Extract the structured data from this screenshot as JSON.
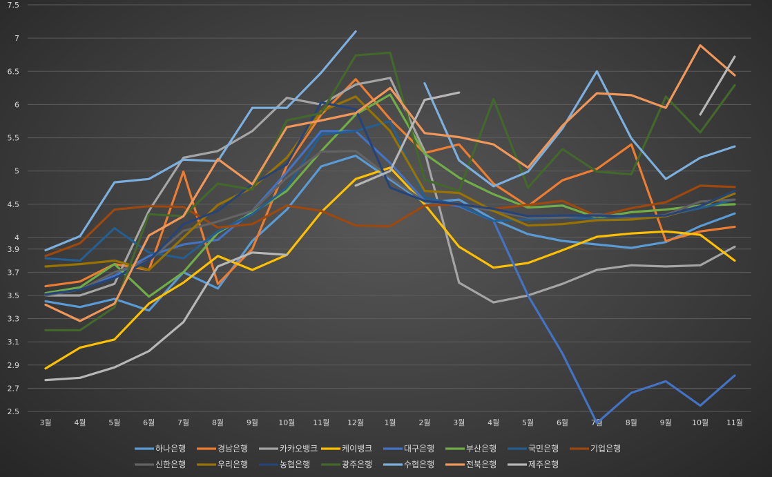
{
  "chart_data": {
    "type": "line",
    "categories": [
      "3월",
      "4월",
      "5월",
      "6월",
      "7월",
      "8월",
      "9월",
      "10월",
      "11월",
      "12월",
      "1월",
      "2월",
      "3월",
      "4월",
      "5월",
      "6월",
      "7월",
      "8월",
      "9월",
      "10월",
      "11월"
    ],
    "y_ticks": [
      "2.5",
      "2.7",
      "2.9",
      "3.1",
      "3.3",
      "3.5",
      "3.7",
      "3.9",
      "4",
      "4.5",
      "5",
      "5.5",
      "6",
      "6.5",
      "7",
      "7.5"
    ],
    "y_scale": "piecewise: 2.5-4 expanded, 4-7.5 compressed",
    "ylim": [
      2.5,
      7.5
    ],
    "grid": true,
    "legend_position": "bottom",
    "series": [
      {
        "name": "하나은행",
        "color": "#5b9bd5",
        "values": [
          3.45,
          3.4,
          3.47,
          3.37,
          3.7,
          3.56,
          3.97,
          4.42,
          5.07,
          5.23,
          4.87,
          4.52,
          4.57,
          4.27,
          4.05,
          3.97,
          3.94,
          3.91,
          3.96,
          4.17,
          4.36
        ]
      },
      {
        "name": "경남은행",
        "color": "#ed7d31",
        "values": [
          3.58,
          3.62,
          3.77,
          3.72,
          4.99,
          3.6,
          3.9,
          5.08,
          5.85,
          6.38,
          5.78,
          5.27,
          5.4,
          4.81,
          4.47,
          4.86,
          5.03,
          5.4,
          3.97,
          4.09,
          4.16
        ]
      },
      {
        "name": "카카오뱅크",
        "color": "#a5a5a5",
        "values": [
          3.5,
          3.5,
          3.6,
          4.4,
          5.2,
          5.3,
          5.6,
          6.1,
          6.0,
          6.3,
          6.4,
          5.3,
          3.61,
          3.44,
          3.5,
          3.6,
          3.72,
          3.76,
          3.75,
          3.76,
          3.92
        ]
      },
      {
        "name": "케이뱅크",
        "color": "#ffc000",
        "values": [
          2.87,
          3.05,
          3.12,
          3.43,
          3.61,
          3.84,
          3.72,
          3.85,
          4.38,
          4.88,
          5.05,
          4.5,
          3.92,
          3.74,
          3.78,
          3.89,
          4.01,
          4.06,
          4.09,
          4.04,
          3.8
        ]
      },
      {
        "name": "대구은행",
        "color": "#4472c4",
        "values": [
          3.51,
          3.55,
          3.67,
          3.84,
          3.94,
          3.98,
          4.4,
          4.98,
          5.6,
          5.6,
          5.12,
          4.55,
          4.47,
          4.25,
          3.5,
          3.0,
          2.4,
          2.66,
          2.76,
          2.55,
          2.81
        ]
      },
      {
        "name": "부산은행",
        "color": "#70ad47",
        "values": [
          3.52,
          3.57,
          3.77,
          3.49,
          3.7,
          4.07,
          4.37,
          4.7,
          5.3,
          5.85,
          6.15,
          5.26,
          4.9,
          4.65,
          4.45,
          4.48,
          4.3,
          4.38,
          4.42,
          4.48,
          4.5
        ]
      },
      {
        "name": "국민은행",
        "color": "#255e91",
        "values": [
          3.82,
          3.8,
          4.14,
          3.87,
          3.82,
          4.09,
          4.35,
          4.75,
          5.55,
          5.6,
          5.75,
          4.6,
          4.49,
          4.25,
          4.27,
          4.3,
          4.28,
          4.29,
          4.33,
          4.44,
          4.57
        ]
      },
      {
        "name": "기업은행",
        "color": "#9e480e",
        "values": [
          3.84,
          3.95,
          4.42,
          4.47,
          4.46,
          4.15,
          4.2,
          4.48,
          4.4,
          4.18,
          4.17,
          4.48,
          4.5,
          4.43,
          4.49,
          4.55,
          4.32,
          4.44,
          4.53,
          4.78,
          4.76
        ]
      },
      {
        "name": "신한은행",
        "color": "#636363",
        "values": [
          3.5,
          3.55,
          3.7,
          3.8,
          4.1,
          4.24,
          4.4,
          4.9,
          5.29,
          5.3,
          4.9,
          4.54,
          4.5,
          4.4,
          4.3,
          4.3,
          4.35,
          4.3,
          4.34,
          4.54,
          4.57
        ]
      },
      {
        "name": "우리은행",
        "color": "#997300",
        "values": [
          3.75,
          3.77,
          3.8,
          3.72,
          4.0,
          4.49,
          4.75,
          5.2,
          5.9,
          6.12,
          5.6,
          4.7,
          4.67,
          4.4,
          4.18,
          4.2,
          4.26,
          4.27,
          4.32,
          4.47,
          4.66
        ]
      },
      {
        "name": "농협은행",
        "color": "#264478",
        "values": [
          3.51,
          3.55,
          3.65,
          3.8,
          4.2,
          4.4,
          4.8,
          5.1,
          6.03,
          5.93,
          4.75,
          4.55,
          4.5,
          4.43,
          4.32,
          4.33,
          4.33,
          4.32,
          4.33,
          4.47,
          4.7
        ]
      },
      {
        "name": "광주은행",
        "color": "#43682b",
        "values": [
          3.2,
          3.2,
          3.4,
          4.35,
          4.32,
          4.81,
          4.72,
          5.76,
          5.87,
          6.74,
          6.78,
          4.87,
          4.7,
          6.08,
          4.75,
          5.33,
          4.99,
          4.95,
          6.12,
          5.58,
          6.29
        ]
      },
      {
        "name": "수협은행",
        "color": "#7cafdd",
        "values": [
          3.89,
          4.02,
          4.83,
          4.88,
          5.17,
          5.15,
          5.95,
          5.95,
          6.48,
          7.1,
          null,
          6.32,
          5.16,
          4.77,
          4.99,
          5.64,
          6.5,
          5.49,
          4.88,
          5.2,
          5.37
        ]
      },
      {
        "name": "전북은행",
        "color": "#f1975a",
        "values": [
          3.42,
          3.28,
          3.43,
          4.03,
          4.32,
          5.18,
          4.8,
          5.66,
          5.76,
          5.87,
          6.25,
          5.57,
          5.51,
          5.4,
          5.05,
          5.68,
          6.17,
          6.14,
          5.95,
          6.89,
          6.44
        ]
      },
      {
        "name": "제주은행",
        "color": "#b7b7b7",
        "values": [
          2.77,
          2.79,
          2.88,
          3.02,
          3.27,
          3.75,
          3.87,
          3.85,
          null,
          4.78,
          5.0,
          6.07,
          6.18,
          null,
          null,
          null,
          null,
          null,
          null,
          5.85,
          6.72
        ]
      }
    ]
  }
}
